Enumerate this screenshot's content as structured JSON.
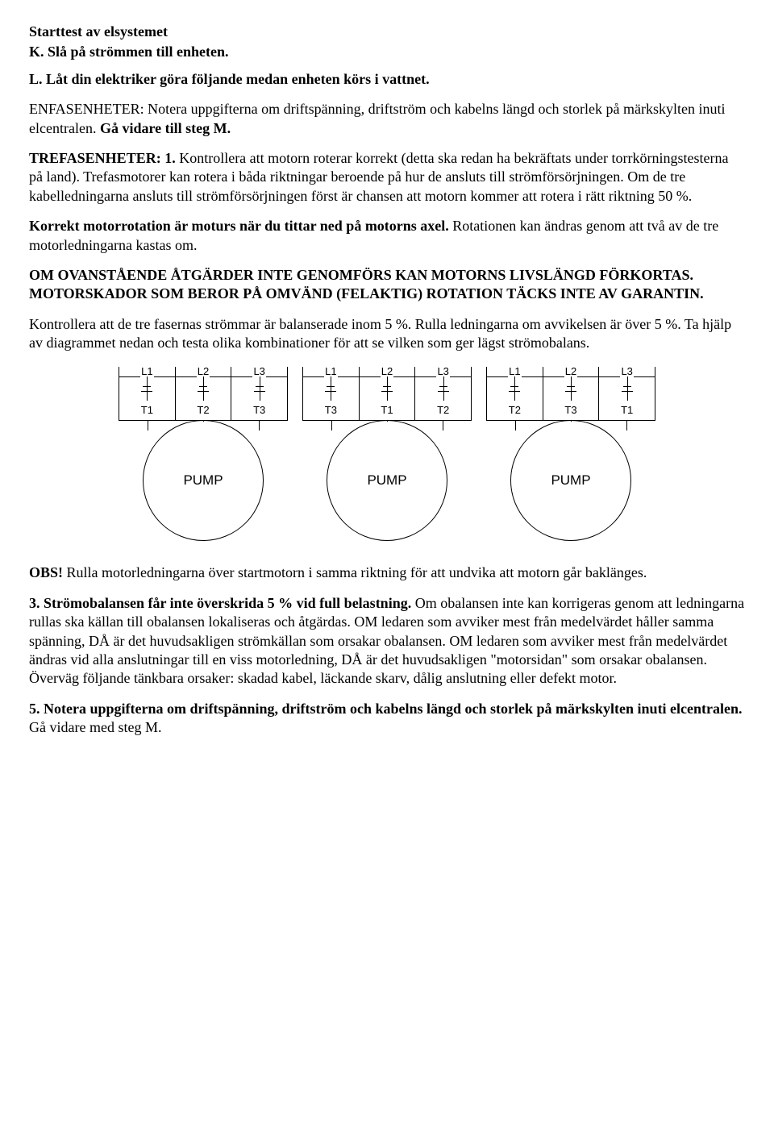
{
  "heading1": "Starttest av elsystemet",
  "stepK": "K. Slå på strömmen till enheten.",
  "stepL": "L. Låt din elektriker göra följande medan enheten körs i vattnet.",
  "enfas_part1": "ENFASENHETER: Notera uppgifterna om driftspänning, driftström och kabelns längd och storlek på märkskylten inuti elcentralen. ",
  "enfas_bold": "Gå vidare till steg M.",
  "trefas_label": "TREFASENHETER: 1.",
  "trefas_rest": " Kontrollera att motorn roterar korrekt (detta ska redan ha bekräftats under torrkörningstesterna på land). Trefasmotorer kan rotera i båda riktningar beroende på hur de ansluts till strömförsörjningen. Om de tre kabelledningarna ansluts till strömförsörjningen först är chansen att motorn kommer att rotera i rätt riktning 50 %.",
  "rotation_bold": "Korrekt motorrotation är moturs när du tittar ned på motorns axel.",
  "rotation_rest": " Rotationen kan ändras genom att två av de tre motorledningarna kastas om.",
  "warning": "OM OVANSTÅENDE ÅTGÄRDER INTE GENOMFÖRS KAN MOTORNS LIVSLÄNGD FÖRKORTAS. MOTORSKADOR SOM BEROR PÅ OMVÄND (FELAKTIG) ROTATION TÄCKS INTE AV GARANTIN.",
  "balance": "Kontrollera att de tre fasernas strömmar är balanserade inom 5 %. Rulla ledningarna om avvikelsen är över 5 %. Ta hjälp av diagrammet nedan och testa olika kombinationer för att se vilken som ger lägst strömobalans.",
  "obs_label": "OBS!",
  "obs_text": " Rulla motorledningarna över startmotorn i samma riktning för att undvika att motorn går baklänges.",
  "step3_bold": "3. Strömobalansen får inte överskrida 5 % vid full belastning.",
  "step3_rest": " Om obalansen inte kan korrigeras genom att ledningarna rullas ska källan till obalansen lokaliseras och åtgärdas. OM ledaren som avviker mest från medelvärdet håller samma spänning, DÅ är det huvudsakligen strömkällan som orsakar obalansen. OM ledaren som avviker mest från medelvärdet ändras vid alla anslutningar till en viss motorledning, DÅ är det huvudsakligen \"motorsidan\" som orsakar obalansen. Överväg följande tänkbara orsaker: skadad kabel, läckande skarv, dålig anslutning eller defekt motor.",
  "step5_bold": "5. Notera uppgifterna om driftspänning, driftström och kabelns längd och storlek på märkskylten inuti elcentralen.",
  "step5_rest": " Gå vidare med steg M.",
  "diagrams": {
    "lines": [
      "L1",
      "L2",
      "L3"
    ],
    "pump_label": "PUMP",
    "variants": [
      [
        "T1",
        "T2",
        "T3"
      ],
      [
        "T3",
        "T1",
        "T2"
      ],
      [
        "T2",
        "T3",
        "T1"
      ]
    ]
  }
}
